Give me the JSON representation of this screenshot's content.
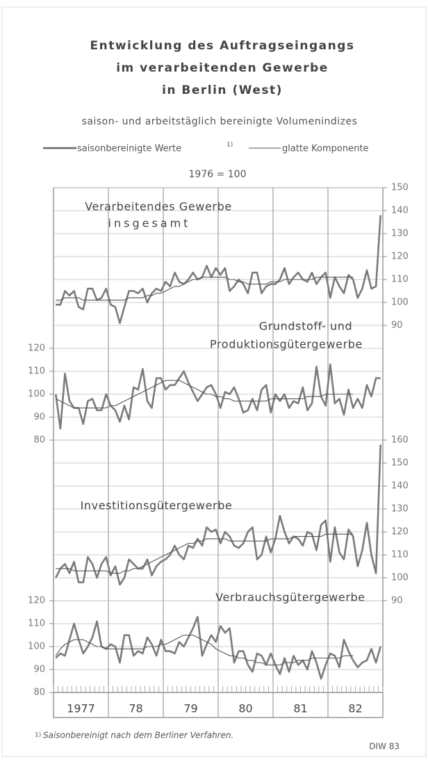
{
  "page": {
    "title": [
      "Entwicklung des Auftragseingangs",
      "im verarbeitenden Gewerbe",
      "in Berlin (West)"
    ],
    "subtitle": "saison- und arbeitstäglich bereinigte Volumenindizes",
    "legend_footnote_marker": "1)",
    "base_note": "1976 = 100",
    "footnote_marker": "1)",
    "footnote": "Saisonbereinigt nach dem Berliner Verfahren.",
    "source": "DIW 83",
    "xticks": [
      "1977",
      "78",
      "79",
      "80",
      "81",
      "82"
    ]
  },
  "chart_data": [
    {
      "type": "line",
      "title": [
        "Verarbeitendes Gewerbe",
        "insgesamt"
      ],
      "yaxis_side": "right",
      "ylim": [
        90,
        150
      ],
      "yticks": [
        150,
        140,
        130,
        120,
        110,
        100,
        90
      ],
      "grid": true,
      "series": [
        {
          "name": "saisonbereinigte Werte",
          "color": "#7a7a7a",
          "values": [
            99,
            99,
            105,
            103,
            105,
            98,
            97,
            106,
            106,
            101,
            102,
            106,
            99,
            98,
            91,
            98,
            105,
            105,
            104,
            106,
            100,
            104,
            106,
            105,
            109,
            107,
            113,
            109,
            108,
            110,
            113,
            110,
            111,
            116,
            111,
            115,
            112,
            115,
            105,
            107,
            110,
            108,
            104,
            113,
            113,
            104,
            107,
            108,
            108,
            110,
            115,
            108,
            111,
            113,
            110,
            109,
            113,
            108,
            111,
            113,
            102,
            111,
            107,
            104,
            112,
            110,
            102,
            106,
            114,
            106,
            107,
            138
          ]
        },
        {
          "name": "glatte Komponente",
          "color": "#555555",
          "values": [
            101,
            101,
            102,
            102,
            102,
            102,
            101,
            101,
            101,
            101,
            101,
            101,
            101,
            101,
            101,
            101,
            102,
            102,
            102,
            102,
            103,
            103,
            104,
            104,
            105,
            106,
            107,
            107,
            108,
            109,
            110,
            110,
            111,
            111,
            111,
            111,
            111,
            111,
            110,
            110,
            109,
            109,
            108,
            108,
            108,
            108,
            108,
            109,
            109,
            109,
            110,
            110,
            110,
            110,
            110,
            110,
            110,
            111,
            111,
            111,
            111,
            111,
            111,
            111,
            111,
            111,
            null,
            null,
            null,
            null,
            null,
            null
          ]
        }
      ]
    },
    {
      "type": "line",
      "title": [
        "Grundstoff- und",
        "Produktionsgütergewerbe"
      ],
      "yaxis_side": "left",
      "ylim": [
        80,
        120
      ],
      "yticks": [
        120,
        110,
        100,
        90,
        80
      ],
      "grid": true,
      "series": [
        {
          "color": "#7a7a7a",
          "values": [
            100,
            85,
            109,
            97,
            94,
            94,
            87,
            97,
            98,
            93,
            93,
            100,
            95,
            93,
            88,
            95,
            89,
            103,
            102,
            111,
            97,
            94,
            107,
            107,
            102,
            104,
            104,
            107,
            110,
            105,
            101,
            97,
            100,
            103,
            104,
            100,
            94,
            101,
            100,
            103,
            98,
            92,
            93,
            98,
            93,
            102,
            104,
            92,
            100,
            97,
            100,
            94,
            97,
            96,
            103,
            93,
            96,
            112,
            99,
            95,
            113,
            96,
            98,
            91,
            102,
            94,
            98,
            94,
            104,
            99,
            107,
            107
          ]
        },
        {
          "color": "#555555",
          "values": [
            98,
            97,
            96,
            95,
            94,
            94,
            94,
            94,
            94,
            94,
            94,
            94,
            95,
            95,
            96,
            97,
            98,
            99,
            100,
            101,
            102,
            103,
            104,
            105,
            106,
            106,
            106,
            106,
            105,
            104,
            103,
            102,
            101,
            100,
            100,
            99,
            99,
            98,
            98,
            97,
            97,
            97,
            97,
            97,
            97,
            97,
            97,
            98,
            98,
            98,
            98,
            98,
            98,
            98,
            98,
            99,
            99,
            99,
            99,
            100,
            100,
            100,
            100,
            100,
            100,
            100,
            null,
            null,
            null,
            null,
            null,
            null
          ]
        }
      ]
    },
    {
      "type": "line",
      "title": [
        "Investitionsgütergewerbe"
      ],
      "yaxis_side": "right",
      "ylim": [
        90,
        160
      ],
      "yticks": [
        160,
        150,
        140,
        130,
        120,
        110,
        100,
        90
      ],
      "grid": true,
      "series": [
        {
          "color": "#7a7a7a",
          "values": [
            100,
            104,
            106,
            102,
            107,
            98,
            98,
            109,
            106,
            100,
            106,
            109,
            101,
            105,
            97,
            100,
            108,
            106,
            104,
            104,
            108,
            101,
            105,
            107,
            108,
            110,
            114,
            110,
            108,
            114,
            113,
            117,
            114,
            122,
            120,
            121,
            115,
            120,
            118,
            114,
            113,
            115,
            120,
            122,
            108,
            110,
            118,
            111,
            117,
            127,
            120,
            115,
            118,
            117,
            114,
            120,
            119,
            112,
            123,
            125,
            107,
            122,
            111,
            108,
            121,
            118,
            105,
            112,
            124,
            110,
            102,
            158
          ]
        },
        {
          "color": "#555555",
          "values": [
            104,
            104,
            104,
            104,
            103,
            103,
            103,
            103,
            103,
            103,
            103,
            103,
            102,
            102,
            102,
            103,
            103,
            104,
            104,
            105,
            106,
            107,
            108,
            109,
            110,
            111,
            112,
            113,
            114,
            115,
            115,
            116,
            116,
            117,
            117,
            117,
            117,
            117,
            116,
            116,
            116,
            116,
            116,
            116,
            116,
            116,
            116,
            117,
            117,
            117,
            117,
            117,
            118,
            118,
            118,
            118,
            118,
            118,
            118,
            119,
            119,
            119,
            119,
            119,
            119,
            119,
            null,
            null,
            null,
            null,
            null,
            null
          ]
        }
      ]
    },
    {
      "type": "line",
      "title": [
        "Verbrauchsgütergewerbe"
      ],
      "yaxis_side": "left",
      "ylim": [
        80,
        120
      ],
      "yticks": [
        120,
        110,
        100,
        90,
        80
      ],
      "grid": true,
      "series": [
        {
          "color": "#7a7a7a",
          "values": [
            95,
            97,
            96,
            103,
            110,
            103,
            97,
            100,
            104,
            111,
            100,
            99,
            101,
            100,
            93,
            105,
            105,
            96,
            98,
            97,
            104,
            101,
            96,
            103,
            98,
            98,
            97,
            102,
            100,
            104,
            108,
            113,
            96,
            101,
            105,
            102,
            109,
            106,
            108,
            93,
            98,
            98,
            92,
            89,
            97,
            96,
            92,
            97,
            92,
            88,
            95,
            89,
            96,
            92,
            94,
            90,
            98,
            93,
            86,
            92,
            97,
            96,
            91,
            103,
            98,
            94,
            91,
            93,
            94,
            99,
            93,
            100
          ]
        },
        {
          "color": "#555555",
          "values": [
            96,
            99,
            101,
            102,
            103,
            103,
            103,
            102,
            101,
            100,
            100,
            99,
            99,
            99,
            99,
            99,
            99,
            99,
            99,
            99,
            100,
            100,
            100,
            101,
            101,
            102,
            103,
            104,
            105,
            105,
            105,
            104,
            103,
            102,
            101,
            99,
            98,
            97,
            96,
            96,
            95,
            95,
            94,
            94,
            93,
            93,
            92,
            92,
            92,
            92,
            93,
            93,
            93,
            94,
            94,
            94,
            95,
            95,
            95,
            95,
            95,
            95,
            95,
            96,
            96,
            96,
            null,
            null,
            null,
            null,
            null,
            null
          ]
        }
      ]
    }
  ]
}
